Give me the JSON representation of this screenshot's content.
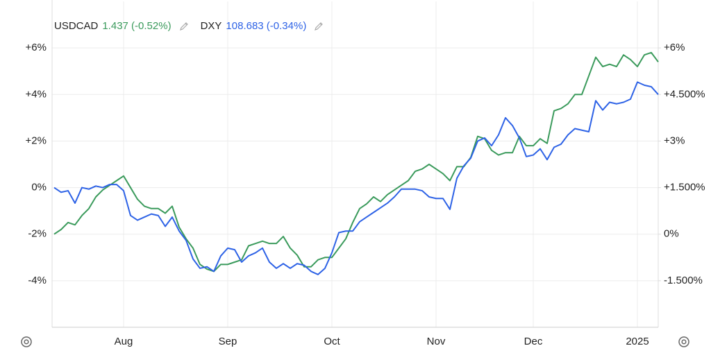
{
  "chart_data": {
    "type": "line",
    "categories": [
      null,
      null,
      null,
      null,
      null,
      null,
      null,
      null,
      null,
      null,
      "Aug",
      null,
      null,
      null,
      null,
      null,
      null,
      null,
      null,
      null,
      null,
      null,
      null,
      null,
      null,
      "Sep",
      null,
      null,
      null,
      null,
      null,
      null,
      null,
      null,
      null,
      null,
      null,
      null,
      null,
      null,
      "Oct",
      null,
      null,
      null,
      null,
      null,
      null,
      null,
      null,
      null,
      null,
      null,
      null,
      null,
      null,
      "Nov",
      null,
      null,
      null,
      null,
      null,
      null,
      null,
      null,
      null,
      null,
      null,
      null,
      null,
      "Dec",
      null,
      null,
      null,
      null,
      null,
      null,
      null,
      null,
      null,
      null,
      null,
      null,
      null,
      null,
      "2025",
      null,
      null,
      null
    ],
    "series": [
      {
        "name": "USDCAD",
        "legend_value": "1.437 (-0.52%)",
        "color": "#3a9a5b",
        "values": [
          -2.0,
          -1.8,
          -1.5,
          -1.6,
          -1.2,
          -0.9,
          -0.4,
          -0.1,
          0.1,
          0.3,
          0.5,
          0.0,
          -0.5,
          -0.8,
          -0.9,
          -0.9,
          -1.1,
          -0.8,
          -1.7,
          -2.2,
          -2.6,
          -3.3,
          -3.5,
          -3.6,
          -3.3,
          -3.3,
          -3.2,
          -3.1,
          -2.5,
          -2.4,
          -2.3,
          -2.4,
          -2.4,
          -2.1,
          -2.6,
          -2.9,
          -3.4,
          -3.4,
          -3.1,
          -3.0,
          -3.0,
          -2.6,
          -2.2,
          -1.5,
          -0.9,
          -0.7,
          -0.4,
          -0.6,
          -0.3,
          -0.1,
          0.1,
          0.3,
          0.7,
          0.8,
          1.0,
          0.8,
          0.6,
          0.3,
          0.9,
          0.9,
          1.3,
          2.2,
          2.1,
          1.6,
          1.4,
          1.5,
          1.5,
          2.2,
          1.8,
          1.8,
          2.1,
          1.9,
          3.3,
          3.4,
          3.6,
          4.0,
          4.0,
          4.8,
          5.6,
          5.2,
          5.3,
          5.2,
          5.7,
          5.5,
          5.2,
          5.7,
          5.8,
          5.4
        ]
      },
      {
        "name": "DXY",
        "legend_value": "108.683 (-0.34%)",
        "color": "#2d62e6",
        "axis": "y2",
        "values": [
          1.5,
          1.35,
          1.4,
          1.0,
          1.5,
          1.45,
          1.55,
          1.5,
          1.6,
          1.6,
          1.4,
          0.6,
          0.45,
          0.55,
          0.65,
          0.6,
          0.25,
          0.55,
          0.1,
          -0.2,
          -0.8,
          -1.1,
          -1.05,
          -1.2,
          -0.7,
          -0.45,
          -0.5,
          -0.9,
          -0.7,
          -0.6,
          -0.45,
          -0.9,
          -1.1,
          -0.95,
          -1.1,
          -0.95,
          -1.0,
          -1.2,
          -1.3,
          -1.1,
          -0.6,
          0.05,
          0.1,
          0.1,
          0.4,
          0.55,
          0.7,
          0.85,
          1.0,
          1.2,
          1.45,
          1.45,
          1.45,
          1.4,
          1.2,
          1.15,
          1.15,
          0.8,
          1.8,
          2.2,
          2.45,
          3.0,
          3.1,
          2.85,
          3.2,
          3.75,
          3.5,
          3.1,
          2.5,
          2.55,
          2.75,
          2.4,
          2.8,
          2.9,
          3.2,
          3.4,
          3.35,
          3.3,
          4.3,
          4.0,
          4.25,
          4.2,
          4.25,
          4.35,
          4.9,
          4.8,
          4.75,
          4.5
        ]
      }
    ],
    "ylim": [
      -6,
      8
    ],
    "yticks": [
      {
        "value": 6,
        "label": "+6%"
      },
      {
        "value": 4,
        "label": "+4%"
      },
      {
        "value": 2,
        "label": "+2%"
      },
      {
        "value": 0,
        "label": "0%"
      },
      {
        "value": -2,
        "label": "-2%"
      },
      {
        "value": -4,
        "label": "-4%"
      }
    ],
    "y2lim": [
      -3,
      7.5
    ],
    "y2ticks": [
      {
        "value": 6,
        "label": "+6%"
      },
      {
        "value": 4.5,
        "label": "+4.500%"
      },
      {
        "value": 3,
        "label": "+3%"
      },
      {
        "value": 1.5,
        "label": "+1.500%"
      },
      {
        "value": 0,
        "label": "0%"
      },
      {
        "value": -1.5,
        "label": "-1.500%"
      }
    ],
    "grid": true
  }
}
